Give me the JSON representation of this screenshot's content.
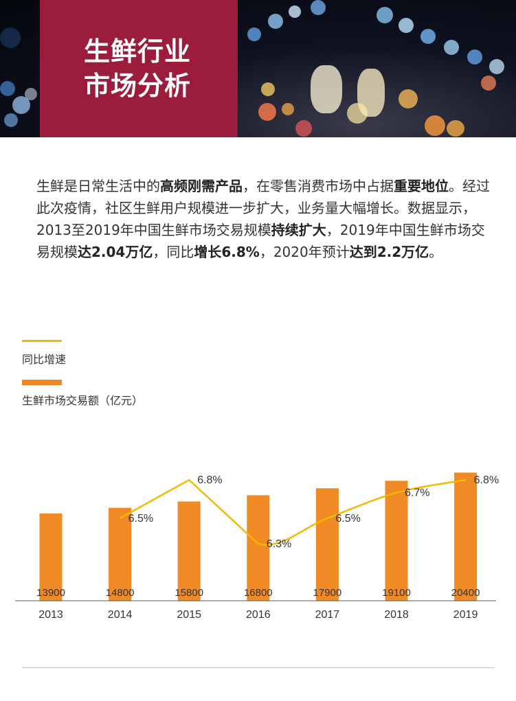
{
  "header": {
    "title_lines": [
      "生鲜行业",
      "市场分析"
    ]
  },
  "intro": {
    "segments": [
      {
        "text": "生鲜是日常生活中的",
        "bold": false
      },
      {
        "text": "高频刚需产品",
        "bold": true
      },
      {
        "text": "，在零售消费市场中占据",
        "bold": false
      },
      {
        "text": "重要地位",
        "bold": true
      },
      {
        "text": "。经过此次疫情，社区生鲜用户规模进一步扩大，业务量大幅增长。数据显示，2013至2019年中国生鲜市场交易规模",
        "bold": false
      },
      {
        "text": "持续扩大",
        "bold": true
      },
      {
        "text": "，2019年中国生鲜市场交易规模",
        "bold": false
      },
      {
        "text": "达2.04万亿",
        "bold": true
      },
      {
        "text": "，同比",
        "bold": false
      },
      {
        "text": "增长6.8%",
        "bold": true
      },
      {
        "text": "，2020年预计",
        "bold": false
      },
      {
        "text": "达到2.2万亿",
        "bold": true
      },
      {
        "text": "。",
        "bold": false
      }
    ]
  },
  "legend": {
    "growth_label": "同比增速",
    "volume_label": "生鲜市场交易额（亿元）"
  },
  "colors": {
    "banner_box": "#9b1c3b",
    "bar": "#f08a24",
    "line": "#f5b800",
    "axis": "#555555"
  },
  "chart_data": {
    "type": "bar",
    "categories": [
      "2013",
      "2014",
      "2015",
      "2016",
      "2017",
      "2018",
      "2019"
    ],
    "series": [
      {
        "name": "生鲜市场交易额（亿元）",
        "type": "bar",
        "values": [
          13900,
          14800,
          15800,
          16800,
          17900,
          19100,
          20400
        ],
        "labels": [
          "13900",
          "14800",
          "15800",
          "16800",
          "17900",
          "19100",
          "20400"
        ]
      },
      {
        "name": "同比增速",
        "type": "line",
        "values": [
          null,
          6.5,
          6.8,
          6.3,
          6.5,
          6.7,
          6.8
        ],
        "labels": [
          null,
          "6.5%",
          "6.8%",
          "6.3%",
          "6.5%",
          "6.7%",
          "6.8%"
        ]
      }
    ],
    "xlabel": "",
    "ylabel": "",
    "grid": false
  }
}
